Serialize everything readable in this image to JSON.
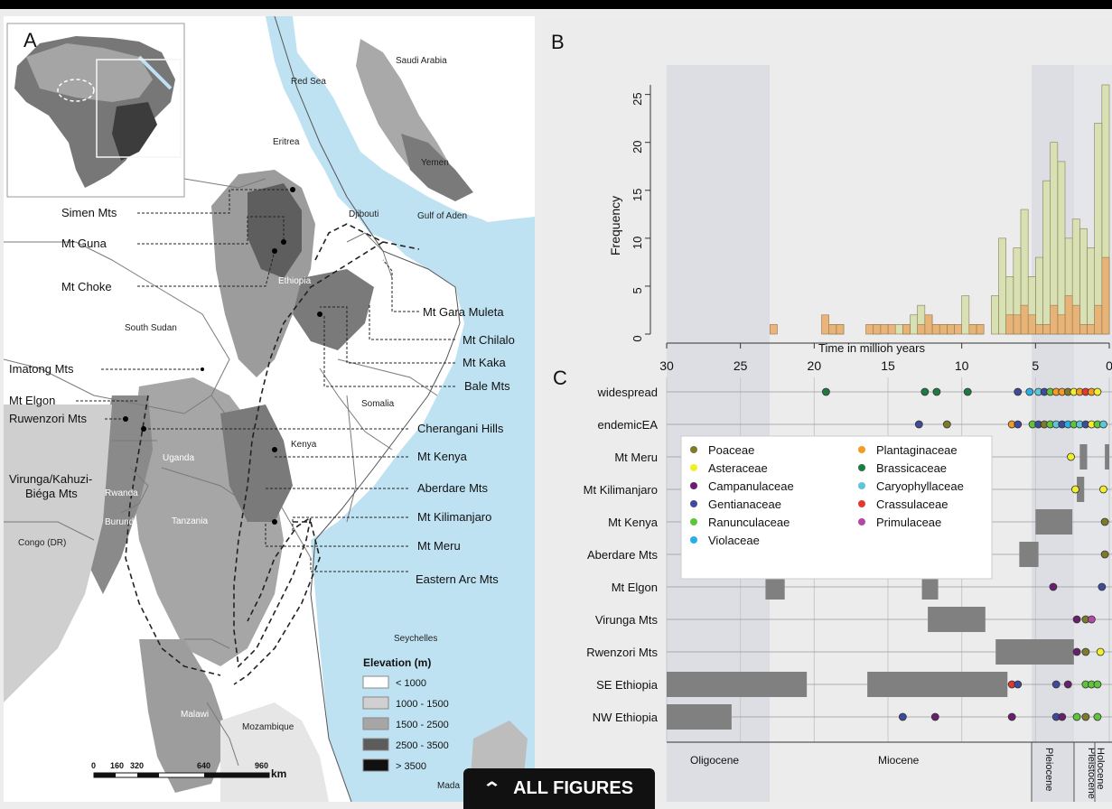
{
  "panels": {
    "a": "A",
    "b": "B",
    "c": "C"
  },
  "map": {
    "regions": [
      "Saudi Arabia",
      "Red Sea",
      "Eritrea",
      "Yemen",
      "Djibouti",
      "Gulf of Aden",
      "Ethiopia",
      "South Sudan",
      "Somalia",
      "Kenya",
      "Uganda",
      "Rwanda",
      "Burundi",
      "Tanzania",
      "Congo (DR)",
      "Seychelles",
      "Malawi",
      "Mozambique",
      "Mada"
    ],
    "mountains": [
      "Simen Mts",
      "Mt Guna",
      "Mt Choke",
      "Mt Gara Muleta",
      "Mt Chilalo",
      "Mt Kaka",
      "Bale Mts",
      "Imatong Mts",
      "Mt Elgon",
      "Cherangani Hills",
      "Ruwenzori Mts",
      "Mt Kenya",
      "Virunga/Kahuzi-",
      "Biéga Mts",
      "Aberdare Mts",
      "Mt Kilimanjaro",
      "Mt Meru",
      "Eastern Arc Mts"
    ],
    "elevation_legend": {
      "title": "Elevation (m)",
      "items": [
        {
          "label": "< 1000",
          "color": "#ffffff"
        },
        {
          "label": "1000 - 1500",
          "color": "#d0d0d0"
        },
        {
          "label": "1500 - 2500",
          "color": "#a6a6a6"
        },
        {
          "label": "2500 - 3500",
          "color": "#5c5c5c"
        },
        {
          "label": "> 3500",
          "color": "#111111"
        }
      ]
    },
    "scale": {
      "ticks": [
        "0",
        "160",
        "320",
        "640",
        "960"
      ],
      "unit": "km"
    }
  },
  "chart_data": [
    {
      "type": "bar",
      "panel": "B",
      "xlabel": "Time in million years",
      "ylabel": "Frequency",
      "xlim": [
        30,
        0
      ],
      "ylim": [
        0,
        26
      ],
      "x_ticks": [
        30,
        25,
        20,
        15,
        10,
        5,
        0
      ],
      "y_ticks": [
        0,
        5,
        10,
        15,
        20,
        25
      ],
      "bin_width": 0.5,
      "x": [
        0.25,
        0.75,
        1.25,
        1.75,
        2.25,
        2.75,
        3.25,
        3.75,
        4.25,
        4.75,
        5.25,
        5.75,
        6.25,
        6.75,
        7.25,
        7.75,
        8.25,
        8.75,
        9.25,
        9.75,
        10.25,
        10.75,
        11.25,
        11.75,
        12.25,
        12.75,
        13.25,
        13.75,
        14.25,
        14.75,
        15.25,
        15.75,
        16.25,
        18.25,
        18.75,
        19.25,
        22.75
      ],
      "series": [
        {
          "color": "#d6e0b0",
          "values": [
            26,
            22,
            9,
            11,
            12,
            10,
            18,
            20,
            16,
            8,
            6,
            13,
            9,
            6,
            10,
            4,
            0,
            1,
            1,
            4,
            0,
            1,
            1,
            1,
            2,
            3,
            2,
            1,
            1,
            0,
            0,
            1,
            0,
            1,
            1,
            0,
            0
          ]
        },
        {
          "color": "#eaae70",
          "values": [
            8,
            3,
            1,
            1,
            3,
            4,
            2,
            3,
            1,
            1,
            2,
            3,
            2,
            2,
            0,
            0,
            0,
            1,
            1,
            0,
            1,
            1,
            1,
            1,
            2,
            1,
            0,
            1,
            0,
            1,
            1,
            1,
            1,
            1,
            1,
            2,
            1
          ]
        }
      ],
      "epoch_bands": [
        "Oligocene",
        "Miocene",
        "Pleiocene",
        "Pleistocene",
        "Holocene"
      ]
    },
    {
      "type": "scatter",
      "panel": "C",
      "xlim": [
        30,
        0
      ],
      "categories": [
        "widespread",
        "endemicEA",
        "Mt  Meru",
        "Mt  Kilimanjaro",
        "Mt  Kenya",
        "Aberdare Mts",
        "Mt  Elgon",
        "Virunga Mts",
        "Rwenzori Mts",
        "SE Ethiopia",
        "NW Ethiopia"
      ],
      "legend": [
        {
          "label": "Poaceae",
          "color": "#7d7a2c"
        },
        {
          "label": "Asteraceae",
          "color": "#f2ee2a"
        },
        {
          "label": "Campanulaceae",
          "color": "#6a1f6e"
        },
        {
          "label": "Gentianaceae",
          "color": "#3d4b9a"
        },
        {
          "label": "Ranunculaceae",
          "color": "#5fc43a"
        },
        {
          "label": "Violaceae",
          "color": "#29aee8"
        },
        {
          "label": "Plantaginaceae",
          "color": "#f59a22"
        },
        {
          "label": "Brassicaceae",
          "color": "#1f7a42"
        },
        {
          "label": "Caryophyllaceae",
          "color": "#5dc5d8"
        },
        {
          "label": "Crassulaceae",
          "color": "#e03a2e"
        },
        {
          "label": "Primulaceae",
          "color": "#b04aa2"
        }
      ],
      "points": [
        {
          "row": 0,
          "x": 19.2,
          "family": "Brassicaceae"
        },
        {
          "row": 0,
          "x": 12.5,
          "family": "Brassicaceae"
        },
        {
          "row": 0,
          "x": 11.7,
          "family": "Brassicaceae"
        },
        {
          "row": 0,
          "x": 9.6,
          "family": "Brassicaceae"
        },
        {
          "row": 0,
          "x": 6.2,
          "family": "Gentianaceae"
        },
        {
          "row": 0,
          "x": 5.4,
          "family": "Violaceae"
        },
        {
          "row": 0,
          "x": 4.8,
          "family": "Caryophyllaceae"
        },
        {
          "row": 0,
          "x": 4.4,
          "family": "Gentianaceae"
        },
        {
          "row": 0,
          "x": 4.0,
          "family": "Ranunculaceae"
        },
        {
          "row": 0,
          "x": 3.6,
          "family": "Plantaginaceae"
        },
        {
          "row": 0,
          "x": 3.2,
          "family": "Plantaginaceae"
        },
        {
          "row": 0,
          "x": 2.8,
          "family": "Poaceae"
        },
        {
          "row": 0,
          "x": 2.4,
          "family": "Asteraceae"
        },
        {
          "row": 0,
          "x": 2.0,
          "family": "Plantaginaceae"
        },
        {
          "row": 0,
          "x": 1.6,
          "family": "Crassulaceae"
        },
        {
          "row": 0,
          "x": 1.2,
          "family": "Plantaginaceae"
        },
        {
          "row": 0,
          "x": 0.8,
          "family": "Asteraceae"
        },
        {
          "row": 1,
          "x": 12.9,
          "family": "Gentianaceae"
        },
        {
          "row": 1,
          "x": 11.0,
          "family": "Poaceae"
        },
        {
          "row": 1,
          "x": 6.6,
          "family": "Plantaginaceae"
        },
        {
          "row": 1,
          "x": 6.2,
          "family": "Gentianaceae"
        },
        {
          "row": 1,
          "x": 5.2,
          "family": "Ranunculaceae"
        },
        {
          "row": 1,
          "x": 4.8,
          "family": "Gentianaceae"
        },
        {
          "row": 1,
          "x": 4.4,
          "family": "Poaceae"
        },
        {
          "row": 1,
          "x": 4.0,
          "family": "Ranunculaceae"
        },
        {
          "row": 1,
          "x": 3.6,
          "family": "Caryophyllaceae"
        },
        {
          "row": 1,
          "x": 3.2,
          "family": "Gentianaceae"
        },
        {
          "row": 1,
          "x": 2.8,
          "family": "Violaceae"
        },
        {
          "row": 1,
          "x": 2.4,
          "family": "Ranunculaceae"
        },
        {
          "row": 1,
          "x": 2.0,
          "family": "Caryophyllaceae"
        },
        {
          "row": 1,
          "x": 1.6,
          "family": "Gentianaceae"
        },
        {
          "row": 1,
          "x": 1.2,
          "family": "Asteraceae"
        },
        {
          "row": 1,
          "x": 0.8,
          "family": "Ranunculaceae"
        },
        {
          "row": 1,
          "x": 0.4,
          "family": "Caryophyllaceae"
        },
        {
          "row": 2,
          "x": 2.6,
          "family": "Asteraceae"
        },
        {
          "row": 3,
          "x": 2.3,
          "family": "Asteraceae"
        },
        {
          "row": 3,
          "x": 0.4,
          "family": "Asteraceae"
        },
        {
          "row": 4,
          "x": 0.3,
          "family": "Poaceae"
        },
        {
          "row": 5,
          "x": 0.3,
          "family": "Poaceae"
        },
        {
          "row": 6,
          "x": 3.8,
          "family": "Campanulaceae"
        },
        {
          "row": 6,
          "x": 0.5,
          "family": "Gentianaceae"
        },
        {
          "row": 7,
          "x": 2.2,
          "family": "Campanulaceae"
        },
        {
          "row": 7,
          "x": 1.6,
          "family": "Poaceae"
        },
        {
          "row": 7,
          "x": 1.2,
          "family": "Primulaceae"
        },
        {
          "row": 8,
          "x": 2.2,
          "family": "Campanulaceae"
        },
        {
          "row": 8,
          "x": 1.6,
          "family": "Poaceae"
        },
        {
          "row": 8,
          "x": 0.6,
          "family": "Asteraceae"
        },
        {
          "row": 9,
          "x": 6.6,
          "family": "Crassulaceae"
        },
        {
          "row": 9,
          "x": 6.2,
          "family": "Gentianaceae"
        },
        {
          "row": 9,
          "x": 3.6,
          "family": "Gentianaceae"
        },
        {
          "row": 9,
          "x": 2.8,
          "family": "Campanulaceae"
        },
        {
          "row": 9,
          "x": 1.6,
          "family": "Ranunculaceae"
        },
        {
          "row": 9,
          "x": 1.2,
          "family": "Ranunculaceae"
        },
        {
          "row": 9,
          "x": 0.8,
          "family": "Ranunculaceae"
        },
        {
          "row": 10,
          "x": 14.0,
          "family": "Gentianaceae"
        },
        {
          "row": 10,
          "x": 11.8,
          "family": "Campanulaceae"
        },
        {
          "row": 10,
          "x": 6.6,
          "family": "Campanulaceae"
        },
        {
          "row": 10,
          "x": 3.6,
          "family": "Gentianaceae"
        },
        {
          "row": 10,
          "x": 3.2,
          "family": "Campanulaceae"
        },
        {
          "row": 10,
          "x": 2.2,
          "family": "Ranunculaceae"
        },
        {
          "row": 10,
          "x": 1.6,
          "family": "Poaceae"
        },
        {
          "row": 10,
          "x": 0.8,
          "family": "Ranunculaceae"
        }
      ],
      "bars": [
        {
          "row": 2,
          "start": 2.0,
          "end": 1.5
        },
        {
          "row": 2,
          "start": 0.3,
          "end": 0.0
        },
        {
          "row": 3,
          "start": 2.2,
          "end": 1.7
        },
        {
          "row": 4,
          "start": 5.0,
          "end": 2.5
        },
        {
          "row": 5,
          "start": 6.1,
          "end": 4.8
        },
        {
          "row": 6,
          "start": 23.3,
          "end": 22.0
        },
        {
          "row": 6,
          "start": 12.7,
          "end": 11.6
        },
        {
          "row": 7,
          "start": 12.3,
          "end": 8.4
        },
        {
          "row": 8,
          "start": 7.7,
          "end": 2.4
        },
        {
          "row": 9,
          "start": 30.0,
          "end": 20.5
        },
        {
          "row": 9,
          "start": 16.4,
          "end": 6.9
        },
        {
          "row": 10,
          "start": 30.0,
          "end": 25.6
        }
      ],
      "epochs": [
        "Oligocene",
        "Miocene",
        "Pleiocene",
        "Pleistocene",
        "Holocene"
      ]
    }
  ],
  "footer": {
    "all_figures_label": "ALL FIGURES",
    "chevron": "chevron-up-icon"
  }
}
